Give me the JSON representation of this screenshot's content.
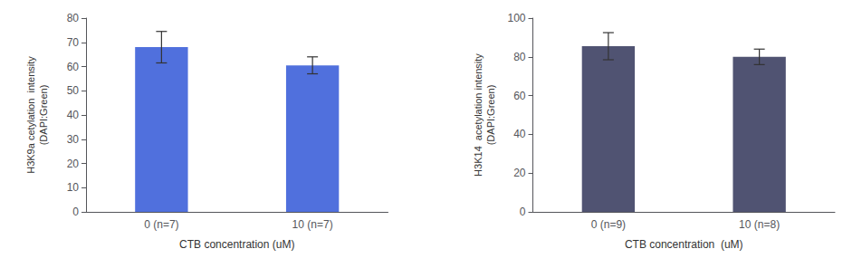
{
  "chart_data": [
    {
      "type": "bar",
      "categories": [
        "0 (n=7)",
        "10 (n=7)"
      ],
      "values": [
        68.0,
        60.5
      ],
      "errors": [
        6.5,
        3.5
      ],
      "xlabel": "CTB concentration (uM)",
      "ylabel": "H3K9a cetylation  intensity\n(DAPI:Green)",
      "ylim": [
        0,
        80
      ],
      "yticks": [
        0,
        10,
        20,
        30,
        40,
        50,
        60,
        70,
        80
      ],
      "grid": false
    },
    {
      "type": "bar",
      "categories": [
        "0 (n=9)",
        "10 (n=8)"
      ],
      "values": [
        85.5,
        80.0
      ],
      "errors": [
        7.0,
        4.0
      ],
      "xlabel": "CTB concentration  (uM)",
      "ylabel": "H3K14  acetylation intensity\n(DAPI:Green)",
      "ylim": [
        0,
        100
      ],
      "yticks": [
        0,
        20,
        40,
        60,
        80,
        100
      ],
      "grid": false
    }
  ]
}
